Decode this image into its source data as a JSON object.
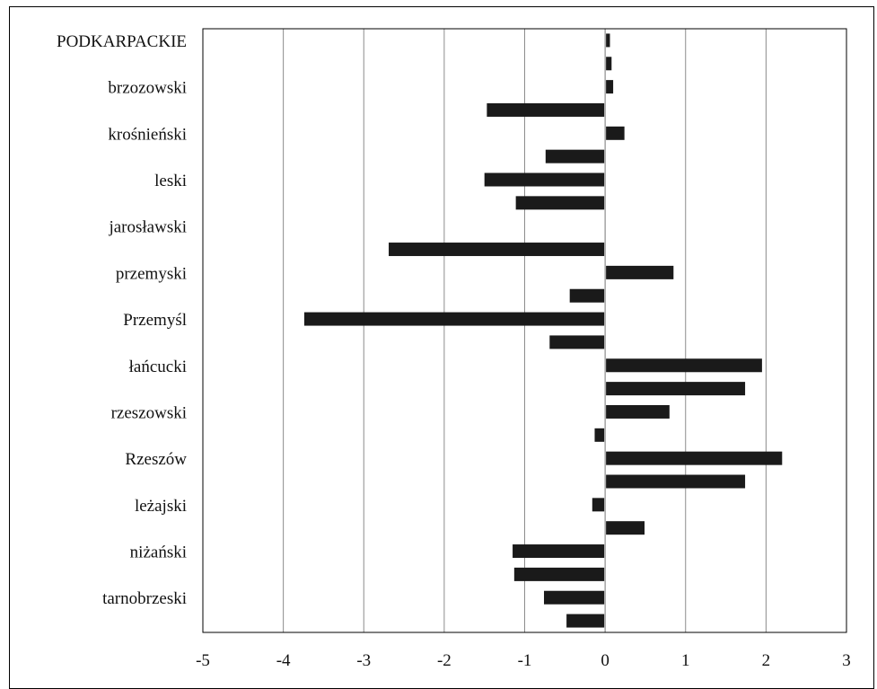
{
  "chart_data": {
    "type": "bar",
    "orientation": "horizontal",
    "title": "",
    "xlabel": "",
    "ylabel": "",
    "xlim": [
      -5,
      3
    ],
    "x_ticks": [
      -5,
      -4,
      -3,
      -2,
      -1,
      0,
      1,
      2,
      3
    ],
    "grid": "vertical",
    "bar_color": "#1a1a1a",
    "categories": [
      "PODKARPACKIE",
      "",
      "brzozowski",
      "",
      "krośnieński",
      "",
      "leski",
      "",
      "jarosławski",
      "",
      "przemyski",
      "",
      "Przemyśl",
      "",
      "łańcucki",
      "",
      "rzeszowski",
      "",
      "Rzeszów",
      "",
      "leżajski",
      "",
      "niżański",
      "",
      "tarnobrzeski",
      ""
    ],
    "values": [
      0.06,
      0.08,
      0.1,
      -1.47,
      0.24,
      -0.74,
      -1.5,
      -1.11,
      0.0,
      -2.69,
      0.85,
      -0.44,
      -3.74,
      -0.69,
      1.95,
      1.74,
      0.8,
      -0.13,
      2.2,
      1.74,
      -0.16,
      0.49,
      -1.15,
      -1.13,
      -0.76,
      -0.48
    ]
  }
}
